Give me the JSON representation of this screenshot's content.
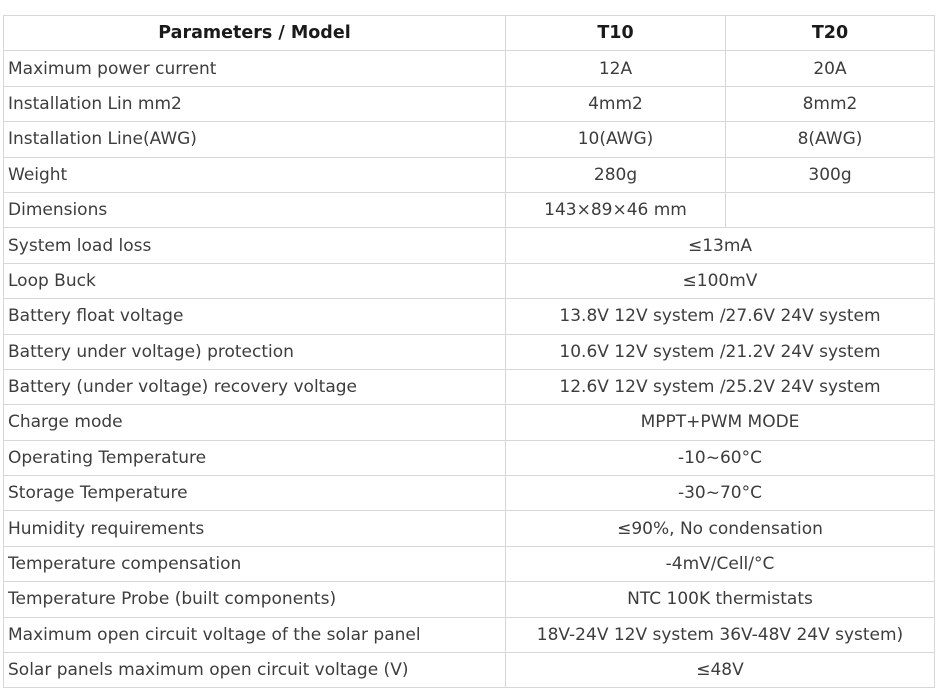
{
  "table": {
    "header": {
      "param_label": "Parameters / Model",
      "model_1": "T10",
      "model_2": "T20"
    },
    "rows": [
      {
        "param": "Maximum power current",
        "t10": "12A",
        "t20": "20A",
        "span": false
      },
      {
        "param": "Installation Lin mm2",
        "t10": "4mm2",
        "t20": "8mm2",
        "span": false
      },
      {
        "param": "Installation Line(AWG)",
        "t10": "10(AWG)",
        "t20": "8(AWG)",
        "span": false
      },
      {
        "param": "Weight",
        "t10": "280g",
        "t20": "300g",
        "span": false
      },
      {
        "param": "Dimensions",
        "t10": "143×89×46 mm",
        "t20": "",
        "span": false
      },
      {
        "param": "System load loss",
        "value": "≤13mA",
        "span": true
      },
      {
        "param": "Loop Buck",
        "value": "≤100mV",
        "span": true
      },
      {
        "param": "Battery float voltage",
        "value": "13.8V 12V system /27.6V 24V system",
        "span": true
      },
      {
        "param": "Battery under voltage) protection",
        "value": "10.6V 12V system /21.2V 24V system",
        "span": true
      },
      {
        "param": "Battery (under voltage) recovery voltage",
        "value": "12.6V 12V system /25.2V 24V system",
        "span": true
      },
      {
        "param": "Charge mode",
        "value": "MPPT+PWM MODE",
        "span": true
      },
      {
        "param": "Operating Temperature",
        "value": "-10~60°C",
        "span": true
      },
      {
        "param": "Storage Temperature",
        "value": "-30~70°C",
        "span": true
      },
      {
        "param": "Humidity requirements",
        "value": "≤90%, No condensation",
        "span": true
      },
      {
        "param": "Temperature compensation",
        "value": "-4mV/Cell/°C",
        "span": true
      },
      {
        "param": "Temperature Probe (built components)",
        "value": "NTC 100K thermistats",
        "span": true
      },
      {
        "param": "Maximum open circuit voltage of the solar panel",
        "value": "18V-24V 12V system 36V-48V 24V system)",
        "span": true
      },
      {
        "param": "Solar panels maximum open circuit voltage (V)",
        "value": "≤48V",
        "span": true
      }
    ],
    "colors": {
      "border": "#d7d7d7",
      "body_text": "#3d3d3d",
      "header_text": "#1a1a1a",
      "background": "#ffffff"
    }
  }
}
